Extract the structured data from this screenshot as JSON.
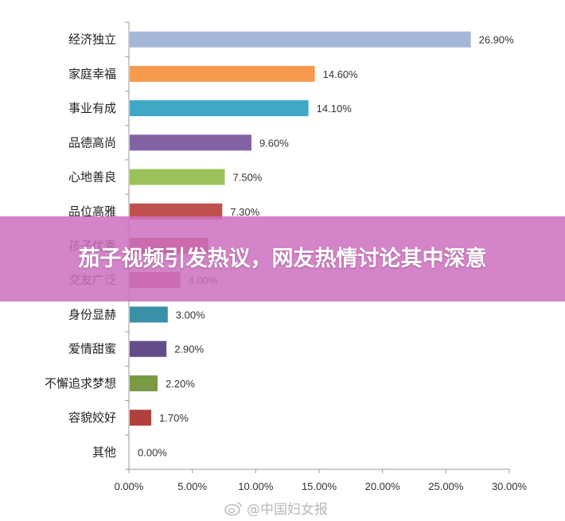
{
  "overlay": {
    "title": "茄子视频引发热议，网友热情讨论其中深意"
  },
  "watermark": {
    "text": "@中国妇女报"
  },
  "chart_data": {
    "type": "bar",
    "orientation": "horizontal",
    "categories": [
      "经济独立",
      "家庭幸福",
      "事业有成",
      "品德高尚",
      "心地善良",
      "品位高雅",
      "孩子优秀",
      "交友广泛",
      "身份显赫",
      "爱情甜蜜",
      "不懈追求梦想",
      "容貌姣好",
      "其他"
    ],
    "values": [
      26.9,
      14.6,
      14.1,
      9.6,
      7.5,
      7.3,
      6.2,
      4.0,
      3.0,
      2.9,
      2.2,
      1.7,
      0.0
    ],
    "value_labels": [
      "26.90%",
      "14.60%",
      "14.10%",
      "9.60%",
      "7.50%",
      "7.30%",
      "",
      "4.00%",
      "3.00%",
      "2.90%",
      "2.20%",
      "1.70%",
      "0.00%"
    ],
    "colors": [
      "#a5b7d7",
      "#f59a4e",
      "#3fa8c4",
      "#8363a6",
      "#9bc25a",
      "#c0504d",
      "#c0504d",
      "#c0577f",
      "#3a90a6",
      "#644c88",
      "#7a9a45",
      "#b0403d",
      "#888888"
    ],
    "xlim": [
      0,
      30
    ],
    "x_ticks": [
      "0.00%",
      "5.00%",
      "10.00%",
      "15.00%",
      "20.00%",
      "25.00%",
      "30.00%"
    ],
    "grid": false,
    "title": "",
    "xlabel": "",
    "ylabel": ""
  }
}
